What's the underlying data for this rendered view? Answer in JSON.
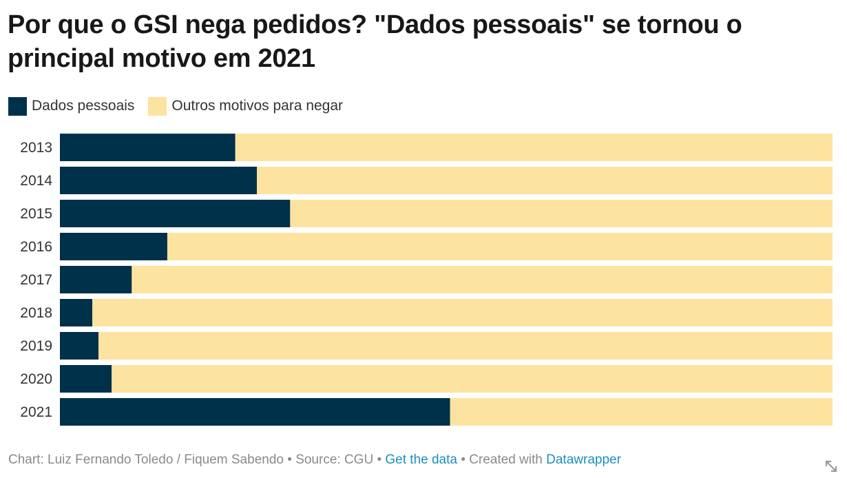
{
  "title": "Por que o GSI nega pedidos? \"Dados pessoais\" se tornou o principal motivo em 2021",
  "legend": [
    {
      "label": "Dados pessoais",
      "color": "#00314a"
    },
    {
      "label": "Outros motivos para negar",
      "color": "#fde3a0"
    }
  ],
  "chart_data": {
    "type": "bar",
    "orientation": "horizontal",
    "stacked": true,
    "normalized": true,
    "title": "Por que o GSI nega pedidos? \"Dados pessoais\" se tornou o principal motivo em 2021",
    "categories": [
      "2013",
      "2014",
      "2015",
      "2016",
      "2017",
      "2018",
      "2019",
      "2020",
      "2021"
    ],
    "series": [
      {
        "name": "Dados pessoais",
        "color": "#00314a",
        "values": [
          22.7,
          25.5,
          29.8,
          13.9,
          9.3,
          4.2,
          5.0,
          6.7,
          50.5
        ]
      },
      {
        "name": "Outros motivos para negar",
        "color": "#fde3a0",
        "values": [
          77.3,
          74.5,
          70.2,
          86.1,
          90.7,
          95.8,
          95.0,
          93.3,
          49.5
        ]
      }
    ],
    "xlim": [
      0,
      100
    ],
    "xlabel": "",
    "ylabel": "",
    "legend_position": "top-left",
    "grid": false
  },
  "footer": {
    "credit": "Chart: Luiz Fernando Toledo / Fiquem Sabendo",
    "separator": " • ",
    "source": "Source: CGU",
    "get_data_label": "Get the data",
    "created_with": "Created with",
    "tool_name": "Datawrapper"
  },
  "icons": {
    "resize": "resize-arrow-icon"
  }
}
